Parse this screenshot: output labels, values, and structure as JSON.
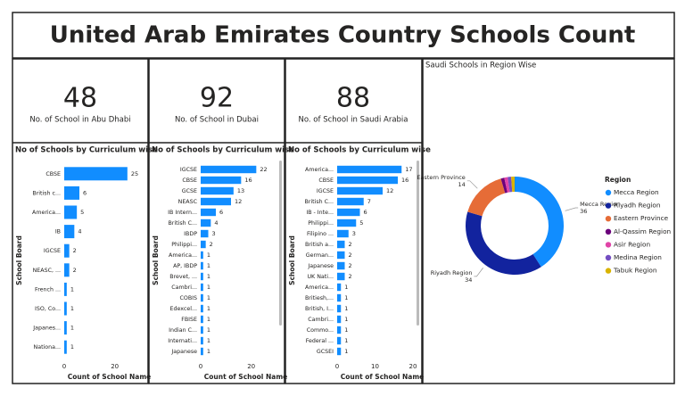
{
  "title": "United Arab Emirates Country Schools Count",
  "cards": [
    {
      "value": 48,
      "label": "No. of School in Abu Dhabi"
    },
    {
      "value": 92,
      "label": "No. of School in Dubai"
    },
    {
      "value": 88,
      "label": "No. of School in Saudi Arabia"
    }
  ],
  "chart_data": [
    {
      "type": "bar",
      "orientation": "horizontal",
      "title": "No of Schools by Curriculum wise",
      "categories": [
        "CBSE",
        "British c...",
        "America...",
        "IB",
        "IGCSE",
        "NEASC, ...",
        "French ...",
        "ISO, Co...",
        "Japanes...",
        "Nationa..."
      ],
      "values": [
        25,
        6,
        5,
        4,
        2,
        2,
        1,
        1,
        1,
        1
      ],
      "color": "#118DFF",
      "xlim": [
        0,
        30
      ],
      "xticks": [
        0,
        20
      ],
      "xlabel": "Count of School Name",
      "ylabel": "School Board"
    },
    {
      "type": "bar",
      "orientation": "horizontal",
      "title": "No of Schools by Curriculum wise",
      "categories": [
        "IGCSE",
        "CBSE",
        "GCSE",
        "NEASC",
        "IB Intern...",
        "British C...",
        "IBDP",
        "Philippi...",
        "America...",
        "AP, IBDP",
        "Brevet, ...",
        "Cambri...",
        "COBIS",
        "Edexcel...",
        "FBISE",
        "Indian C...",
        "Internati...",
        "Japanese"
      ],
      "values": [
        22,
        16,
        13,
        12,
        6,
        4,
        3,
        2,
        1,
        1,
        1,
        1,
        1,
        1,
        1,
        1,
        1,
        1
      ],
      "color": "#118DFF",
      "xlim": [
        0,
        30
      ],
      "xticks": [
        0,
        20
      ],
      "xlabel": "Count of School Name",
      "ylabel": "School Board"
    },
    {
      "type": "bar",
      "orientation": "horizontal",
      "title": "No of Schools by Curriculum wise",
      "categories": [
        "America...",
        "CBSE",
        "IGCSE",
        "British C...",
        "IB - Inte...",
        "Philippi...",
        "Filipino ...",
        "British a...",
        "German...",
        "Japanese",
        "UK Nati...",
        "America...",
        "Britiesh,...",
        "British, I...",
        "Cambri...",
        "Commo...",
        "Federal ...",
        "GCSEI"
      ],
      "values": [
        17,
        16,
        12,
        7,
        6,
        5,
        3,
        2,
        2,
        2,
        2,
        1,
        1,
        1,
        1,
        1,
        1,
        1
      ],
      "color": "#118DFF",
      "xlim": [
        0,
        20
      ],
      "xticks": [
        0,
        10,
        20
      ],
      "xlabel": "Count of School Name",
      "ylabel": "School Board"
    },
    {
      "type": "donut",
      "title": "Saudi Schools in Region Wise",
      "legend_title": "Region",
      "categories": [
        "Mecca Region",
        "Riyadh Region",
        "Eastern Province",
        "Al-Qassim Region",
        "Asir Region",
        "Medina Region",
        "Tabuk Region"
      ],
      "values": [
        36,
        34,
        14,
        1,
        1,
        1,
        1
      ],
      "colors": [
        "#118DFF",
        "#12239E",
        "#E66C37",
        "#6B007B",
        "#E044A7",
        "#744EC2",
        "#D9B300"
      ]
    }
  ]
}
